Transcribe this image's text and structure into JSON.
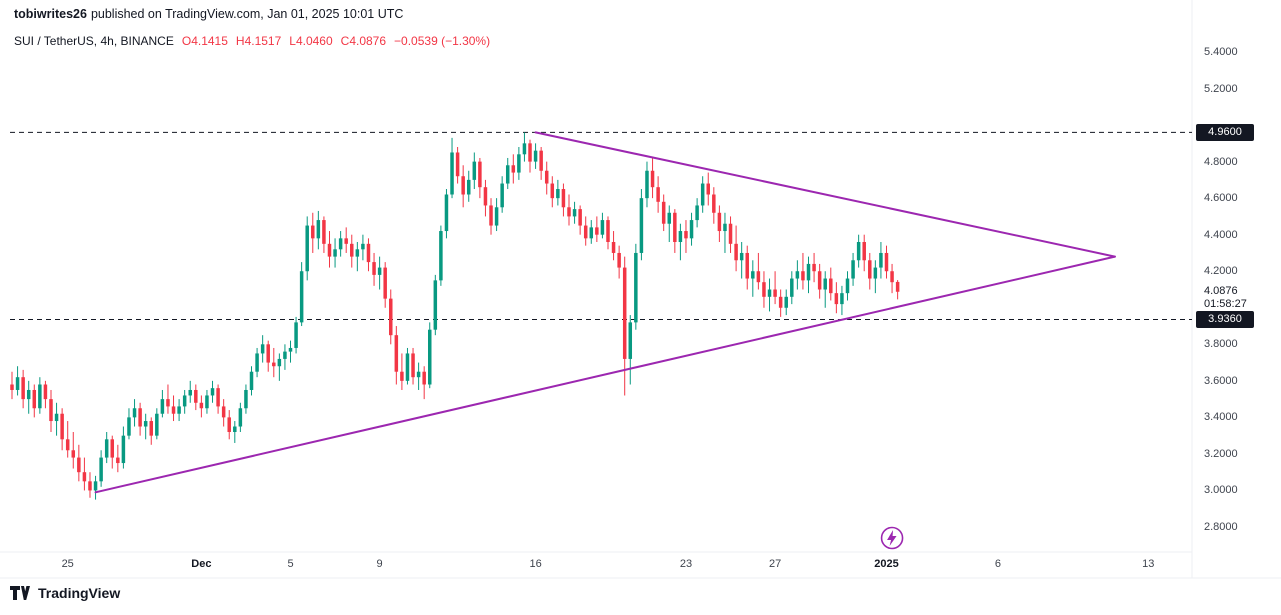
{
  "header": {
    "username": "tobiwrites26",
    "publish_text": "published on TradingView.com, Jan 01, 2025 10:01 UTC"
  },
  "legend": {
    "title": "SUI / TetherUS, 4h, BINANCE",
    "ohlc": [
      {
        "label": "O",
        "value": "4.1415"
      },
      {
        "label": "H",
        "value": "4.1517"
      },
      {
        "label": "L",
        "value": "4.0460"
      },
      {
        "label": "C",
        "value": "4.0876"
      }
    ],
    "change": "−0.0539 (−1.30%)"
  },
  "price_axis": {
    "ticks": [
      5.4,
      5.2,
      4.8,
      4.6,
      4.4,
      4.2,
      3.8,
      3.6,
      3.4,
      3.2,
      3.0,
      2.8
    ],
    "levels": [
      {
        "value": 4.96,
        "label": "4.9600"
      },
      {
        "value": 3.936,
        "label": "3.9360"
      }
    ],
    "current": {
      "value": 4.0876,
      "label": "4.0876",
      "countdown": "01:58:27"
    }
  },
  "time_axis": {
    "ticks": [
      {
        "label": "25",
        "i": 10
      },
      {
        "label": "Dec",
        "i": 34,
        "major": true
      },
      {
        "label": "5",
        "i": 50
      },
      {
        "label": "9",
        "i": 66
      },
      {
        "label": "16",
        "i": 94
      },
      {
        "label": "23",
        "i": 121
      },
      {
        "label": "27",
        "i": 137
      },
      {
        "label": "2025",
        "i": 157,
        "major": true
      },
      {
        "label": "6",
        "i": 177
      },
      {
        "label": "13",
        "i": 204
      }
    ]
  },
  "footer": {
    "brand": "TradingView"
  },
  "chart_data": {
    "type": "candlestick",
    "title": "SUI / TetherUS, 4h, BINANCE",
    "interval": "4h",
    "ylim": [
      2.8,
      5.4
    ],
    "up_color": "#089981",
    "down_color": "#f23645",
    "trend_color": "#9c27b0",
    "pattern": "symmetrical triangle",
    "trendlines": [
      {
        "name": "upper",
        "from": {
          "i": 94,
          "price": 4.96
        },
        "to": {
          "i": 198,
          "price": 4.28
        }
      },
      {
        "name": "lower",
        "from": {
          "i": 15,
          "price": 2.99
        },
        "to": {
          "i": 198,
          "price": 4.28
        }
      }
    ],
    "marker": {
      "type": "lightning-icon",
      "i": 158
    },
    "candles": [
      [
        3.58,
        3.65,
        3.5,
        3.55
      ],
      [
        3.55,
        3.68,
        3.52,
        3.62
      ],
      [
        3.62,
        3.66,
        3.45,
        3.5
      ],
      [
        3.5,
        3.6,
        3.42,
        3.55
      ],
      [
        3.55,
        3.58,
        3.4,
        3.45
      ],
      [
        3.45,
        3.62,
        3.42,
        3.58
      ],
      [
        3.58,
        3.6,
        3.45,
        3.5
      ],
      [
        3.5,
        3.55,
        3.32,
        3.38
      ],
      [
        3.38,
        3.48,
        3.3,
        3.42
      ],
      [
        3.42,
        3.45,
        3.22,
        3.28
      ],
      [
        3.28,
        3.38,
        3.18,
        3.22
      ],
      [
        3.22,
        3.32,
        3.12,
        3.18
      ],
      [
        3.18,
        3.25,
        3.05,
        3.1
      ],
      [
        3.1,
        3.18,
        3.0,
        3.05
      ],
      [
        3.05,
        3.1,
        2.96,
        3.0
      ],
      [
        3.0,
        3.08,
        2.95,
        3.05
      ],
      [
        3.05,
        3.22,
        3.02,
        3.18
      ],
      [
        3.18,
        3.32,
        3.15,
        3.28
      ],
      [
        3.28,
        3.3,
        3.12,
        3.18
      ],
      [
        3.18,
        3.25,
        3.1,
        3.15
      ],
      [
        3.15,
        3.35,
        3.12,
        3.3
      ],
      [
        3.3,
        3.45,
        3.28,
        3.4
      ],
      [
        3.4,
        3.5,
        3.35,
        3.45
      ],
      [
        3.45,
        3.48,
        3.3,
        3.35
      ],
      [
        3.35,
        3.42,
        3.28,
        3.38
      ],
      [
        3.38,
        3.4,
        3.25,
        3.3
      ],
      [
        3.3,
        3.45,
        3.28,
        3.42
      ],
      [
        3.42,
        3.55,
        3.4,
        3.5
      ],
      [
        3.5,
        3.58,
        3.42,
        3.46
      ],
      [
        3.46,
        3.52,
        3.38,
        3.42
      ],
      [
        3.42,
        3.5,
        3.38,
        3.46
      ],
      [
        3.46,
        3.55,
        3.42,
        3.52
      ],
      [
        3.52,
        3.6,
        3.48,
        3.55
      ],
      [
        3.55,
        3.58,
        3.44,
        3.48
      ],
      [
        3.48,
        3.52,
        3.4,
        3.45
      ],
      [
        3.45,
        3.55,
        3.42,
        3.52
      ],
      [
        3.52,
        3.6,
        3.48,
        3.56
      ],
      [
        3.56,
        3.58,
        3.42,
        3.46
      ],
      [
        3.46,
        3.5,
        3.35,
        3.4
      ],
      [
        3.4,
        3.44,
        3.28,
        3.32
      ],
      [
        3.32,
        3.38,
        3.26,
        3.35
      ],
      [
        3.35,
        3.48,
        3.32,
        3.45
      ],
      [
        3.45,
        3.58,
        3.42,
        3.55
      ],
      [
        3.55,
        3.68,
        3.52,
        3.65
      ],
      [
        3.65,
        3.78,
        3.62,
        3.75
      ],
      [
        3.75,
        3.85,
        3.7,
        3.8
      ],
      [
        3.8,
        3.82,
        3.65,
        3.7
      ],
      [
        3.7,
        3.78,
        3.62,
        3.68
      ],
      [
        3.68,
        3.75,
        3.6,
        3.72
      ],
      [
        3.72,
        3.8,
        3.66,
        3.76
      ],
      [
        3.76,
        3.82,
        3.7,
        3.78
      ],
      [
        3.78,
        3.95,
        3.75,
        3.92
      ],
      [
        3.92,
        4.25,
        3.9,
        4.2
      ],
      [
        4.2,
        4.5,
        4.15,
        4.45
      ],
      [
        4.45,
        4.52,
        4.3,
        4.38
      ],
      [
        4.38,
        4.53,
        4.32,
        4.48
      ],
      [
        4.48,
        4.5,
        4.3,
        4.35
      ],
      [
        4.35,
        4.42,
        4.22,
        4.28
      ],
      [
        4.28,
        4.38,
        4.22,
        4.32
      ],
      [
        4.32,
        4.42,
        4.28,
        4.38
      ],
      [
        4.38,
        4.44,
        4.3,
        4.35
      ],
      [
        4.35,
        4.4,
        4.22,
        4.28
      ],
      [
        4.28,
        4.36,
        4.2,
        4.32
      ],
      [
        4.32,
        4.4,
        4.26,
        4.35
      ],
      [
        4.35,
        4.38,
        4.2,
        4.25
      ],
      [
        4.25,
        4.3,
        4.12,
        4.18
      ],
      [
        4.18,
        4.28,
        4.1,
        4.22
      ],
      [
        4.22,
        4.25,
        4.0,
        4.05
      ],
      [
        4.05,
        4.1,
        3.8,
        3.85
      ],
      [
        3.85,
        3.9,
        3.58,
        3.65
      ],
      [
        3.65,
        3.75,
        3.55,
        3.6
      ],
      [
        3.6,
        3.78,
        3.58,
        3.75
      ],
      [
        3.75,
        3.78,
        3.58,
        3.62
      ],
      [
        3.62,
        3.7,
        3.55,
        3.65
      ],
      [
        3.65,
        3.68,
        3.5,
        3.58
      ],
      [
        3.58,
        3.92,
        3.56,
        3.88
      ],
      [
        3.88,
        4.18,
        3.85,
        4.15
      ],
      [
        4.15,
        4.45,
        4.12,
        4.42
      ],
      [
        4.42,
        4.65,
        4.38,
        4.62
      ],
      [
        4.62,
        4.93,
        4.6,
        4.85
      ],
      [
        4.85,
        4.88,
        4.68,
        4.72
      ],
      [
        4.72,
        4.78,
        4.55,
        4.62
      ],
      [
        4.62,
        4.75,
        4.58,
        4.7
      ],
      [
        4.7,
        4.85,
        4.65,
        4.8
      ],
      [
        4.8,
        4.82,
        4.6,
        4.66
      ],
      [
        4.66,
        4.7,
        4.5,
        4.56
      ],
      [
        4.56,
        4.6,
        4.4,
        4.45
      ],
      [
        4.45,
        4.6,
        4.42,
        4.55
      ],
      [
        4.55,
        4.72,
        4.52,
        4.68
      ],
      [
        4.68,
        4.82,
        4.65,
        4.78
      ],
      [
        4.78,
        4.84,
        4.68,
        4.74
      ],
      [
        4.74,
        4.88,
        4.7,
        4.84
      ],
      [
        4.84,
        4.96,
        4.8,
        4.9
      ],
      [
        4.9,
        4.92,
        4.74,
        4.8
      ],
      [
        4.8,
        4.9,
        4.76,
        4.86
      ],
      [
        4.86,
        4.88,
        4.7,
        4.75
      ],
      [
        4.75,
        4.8,
        4.62,
        4.68
      ],
      [
        4.68,
        4.72,
        4.55,
        4.6
      ],
      [
        4.6,
        4.7,
        4.56,
        4.65
      ],
      [
        4.65,
        4.68,
        4.5,
        4.55
      ],
      [
        4.55,
        4.62,
        4.45,
        4.5
      ],
      [
        4.5,
        4.58,
        4.46,
        4.54
      ],
      [
        4.54,
        4.56,
        4.4,
        4.45
      ],
      [
        4.45,
        4.5,
        4.34,
        4.38
      ],
      [
        4.38,
        4.48,
        4.35,
        4.44
      ],
      [
        4.44,
        4.5,
        4.36,
        4.4
      ],
      [
        4.4,
        4.52,
        4.38,
        4.48
      ],
      [
        4.48,
        4.5,
        4.32,
        4.36
      ],
      [
        4.36,
        4.42,
        4.26,
        4.3
      ],
      [
        4.3,
        4.34,
        4.16,
        4.22
      ],
      [
        4.22,
        4.28,
        3.52,
        3.72
      ],
      [
        3.72,
        3.96,
        3.58,
        3.92
      ],
      [
        3.92,
        4.35,
        3.88,
        4.3
      ],
      [
        4.3,
        4.65,
        4.26,
        4.6
      ],
      [
        4.6,
        4.8,
        4.55,
        4.75
      ],
      [
        4.75,
        4.82,
        4.6,
        4.66
      ],
      [
        4.66,
        4.72,
        4.52,
        4.58
      ],
      [
        4.58,
        4.62,
        4.42,
        4.46
      ],
      [
        4.46,
        4.56,
        4.36,
        4.52
      ],
      [
        4.52,
        4.54,
        4.3,
        4.36
      ],
      [
        4.36,
        4.46,
        4.26,
        4.42
      ],
      [
        4.42,
        4.48,
        4.3,
        4.38
      ],
      [
        4.38,
        4.52,
        4.34,
        4.48
      ],
      [
        4.48,
        4.6,
        4.44,
        4.56
      ],
      [
        4.56,
        4.72,
        4.52,
        4.68
      ],
      [
        4.68,
        4.74,
        4.56,
        4.62
      ],
      [
        4.62,
        4.66,
        4.46,
        4.52
      ],
      [
        4.52,
        4.56,
        4.36,
        4.42
      ],
      [
        4.42,
        4.52,
        4.3,
        4.46
      ],
      [
        4.46,
        4.5,
        4.3,
        4.35
      ],
      [
        4.35,
        4.45,
        4.2,
        4.26
      ],
      [
        4.26,
        4.36,
        4.16,
        4.3
      ],
      [
        4.3,
        4.34,
        4.1,
        4.16
      ],
      [
        4.16,
        4.26,
        4.06,
        4.2
      ],
      [
        4.2,
        4.3,
        4.1,
        4.14
      ],
      [
        4.14,
        4.2,
        4.0,
        4.06
      ],
      [
        4.06,
        4.16,
        3.98,
        4.1
      ],
      [
        4.1,
        4.2,
        4.02,
        4.06
      ],
      [
        4.06,
        4.1,
        3.95,
        4.0
      ],
      [
        4.0,
        4.1,
        3.96,
        4.06
      ],
      [
        4.06,
        4.2,
        4.02,
        4.16
      ],
      [
        4.16,
        4.26,
        4.1,
        4.2
      ],
      [
        4.2,
        4.3,
        4.1,
        4.15
      ],
      [
        4.15,
        4.28,
        4.08,
        4.24
      ],
      [
        4.24,
        4.3,
        4.14,
        4.2
      ],
      [
        4.2,
        4.24,
        4.05,
        4.1
      ],
      [
        4.1,
        4.2,
        4.0,
        4.16
      ],
      [
        4.16,
        4.22,
        4.04,
        4.08
      ],
      [
        4.08,
        4.14,
        3.97,
        4.02
      ],
      [
        4.02,
        4.12,
        3.96,
        4.08
      ],
      [
        4.08,
        4.2,
        4.04,
        4.16
      ],
      [
        4.16,
        4.3,
        4.12,
        4.26
      ],
      [
        4.26,
        4.4,
        4.22,
        4.36
      ],
      [
        4.36,
        4.4,
        4.2,
        4.26
      ],
      [
        4.26,
        4.3,
        4.1,
        4.16
      ],
      [
        4.16,
        4.26,
        4.08,
        4.22
      ],
      [
        4.22,
        4.36,
        4.16,
        4.3
      ],
      [
        4.3,
        4.34,
        4.16,
        4.2
      ],
      [
        4.2,
        4.24,
        4.08,
        4.14
      ],
      [
        4.1415,
        4.1517,
        4.046,
        4.0876
      ]
    ]
  }
}
